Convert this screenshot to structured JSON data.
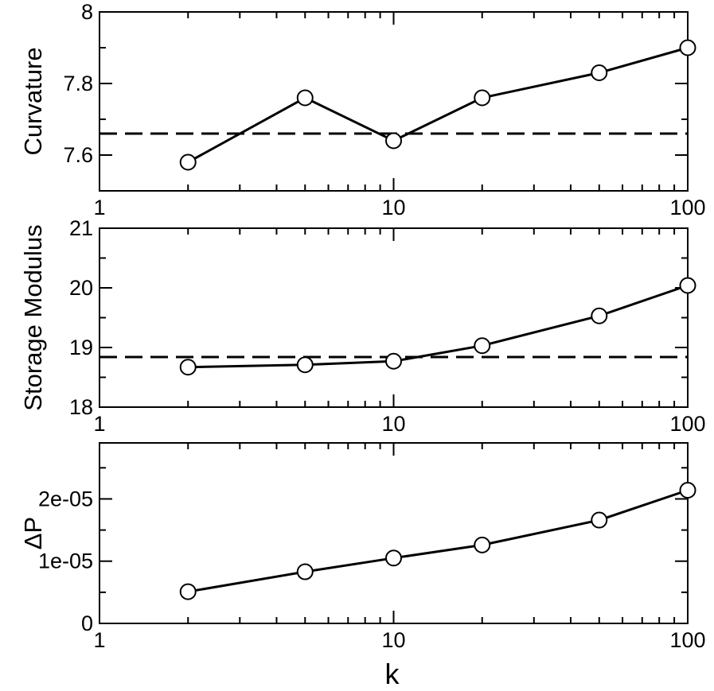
{
  "chart_data": [
    {
      "type": "line",
      "ylabel": "Curvature",
      "xscale": "log",
      "xlim": [
        1,
        100
      ],
      "ylim": [
        7.5,
        8.0
      ],
      "xticks": [
        "1",
        "10",
        "100"
      ],
      "yticks": [
        {
          "v": 7.6,
          "label": "7.6"
        },
        {
          "v": 7.8,
          "label": "7.8"
        },
        {
          "v": 8.0,
          "label": "8"
        }
      ],
      "x": [
        2,
        5,
        10,
        20,
        50,
        100
      ],
      "series": [
        {
          "values": [
            7.58,
            7.76,
            7.64,
            7.76,
            7.83,
            7.9
          ],
          "marker": "open-circle"
        }
      ],
      "reference_line": {
        "y": 7.66,
        "style": "dashed"
      },
      "grid": false
    },
    {
      "type": "line",
      "ylabel": "Storage Modulus",
      "xscale": "log",
      "xlim": [
        1,
        100
      ],
      "ylim": [
        18,
        21
      ],
      "xticks": [
        "1",
        "10",
        "100"
      ],
      "yticks": [
        {
          "v": 18,
          "label": "18"
        },
        {
          "v": 19,
          "label": "19"
        },
        {
          "v": 20,
          "label": "20"
        },
        {
          "v": 21,
          "label": "21"
        }
      ],
      "x": [
        2,
        5,
        10,
        20,
        50,
        100
      ],
      "series": [
        {
          "values": [
            18.67,
            18.71,
            18.77,
            19.03,
            19.53,
            20.04
          ],
          "marker": "open-circle"
        }
      ],
      "reference_line": {
        "y": 18.84,
        "style": "dashed"
      },
      "grid": false
    },
    {
      "type": "line",
      "ylabel": "ΔP",
      "xlabel": "k",
      "xscale": "log",
      "xlim": [
        1,
        100
      ],
      "ylim": [
        0,
        2.9e-05
      ],
      "xticks": [
        "1",
        "10",
        "100"
      ],
      "yticks": [
        {
          "v": 0,
          "label": "0"
        },
        {
          "v": 1e-05,
          "label": "1e-05"
        },
        {
          "v": 2e-05,
          "label": "2e-05"
        }
      ],
      "x": [
        2,
        5,
        10,
        20,
        50,
        100
      ],
      "series": [
        {
          "values": [
            5.1e-06,
            8.3e-06,
            1.05e-05,
            1.26e-05,
            1.66e-05,
            2.14e-05
          ],
          "marker": "open-circle"
        }
      ],
      "grid": false
    }
  ]
}
